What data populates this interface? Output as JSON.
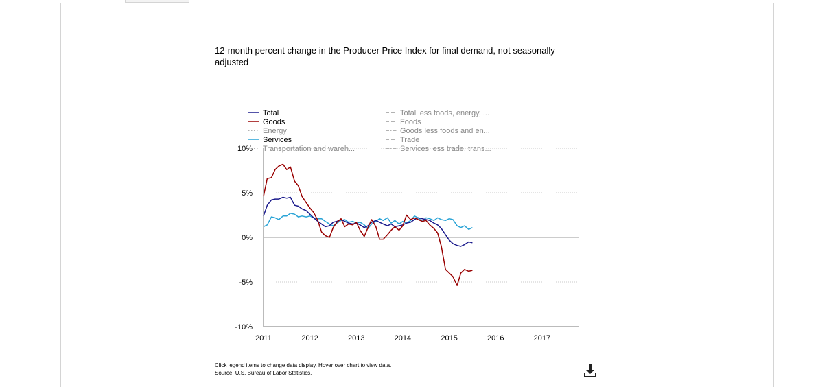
{
  "page": {
    "notes_line1": "Click legend items to change data display. Hover over chart to view data.",
    "notes_line2": "Source: U.S. Bureau of Labor Statistics.",
    "download_icon": "download-icon"
  },
  "chart_data": {
    "type": "line",
    "title": "12-month percent change in the Producer Price Index for final demand, not seasonally adjusted",
    "xlabel": "",
    "ylabel": "",
    "x_ticks": [
      "2011",
      "2012",
      "2013",
      "2014",
      "2015",
      "2016",
      "2017"
    ],
    "xlim": [
      2011,
      2017.8
    ],
    "y_ticks": [
      "10%",
      "5%",
      "0%",
      "-5%",
      "-10%"
    ],
    "ylim": [
      -10,
      10
    ],
    "grid": true,
    "legend_placement": "top",
    "series": [
      {
        "name": "Total",
        "color": "#1a1a8c",
        "dash": "solid",
        "active": true,
        "legend_column": 0,
        "x": [
          2011.0,
          2011.08,
          2011.17,
          2011.25,
          2011.33,
          2011.42,
          2011.5,
          2011.58,
          2011.67,
          2011.75,
          2011.83,
          2011.92,
          2012.0,
          2012.08,
          2012.17,
          2012.25,
          2012.33,
          2012.42,
          2012.5,
          2012.58,
          2012.67,
          2012.75,
          2012.83,
          2012.92,
          2013.0,
          2013.08,
          2013.17,
          2013.25,
          2013.33,
          2013.42,
          2013.5,
          2013.58,
          2013.67,
          2013.75,
          2013.83,
          2013.92,
          2014.0,
          2014.08,
          2014.17,
          2014.25,
          2014.33,
          2014.42,
          2014.5,
          2014.58,
          2014.67,
          2014.75,
          2014.83,
          2014.92,
          2015.0,
          2015.08,
          2015.17,
          2015.25,
          2015.33,
          2015.42,
          2015.5
        ],
        "y": [
          2.4,
          3.6,
          4.2,
          4.3,
          4.3,
          4.5,
          4.4,
          4.5,
          3.6,
          3.5,
          3.2,
          3.0,
          2.6,
          2.2,
          1.8,
          1.5,
          1.2,
          1.3,
          1.7,
          1.8,
          2.0,
          1.8,
          1.6,
          1.5,
          1.6,
          1.4,
          1.1,
          1.3,
          1.7,
          1.9,
          1.7,
          1.5,
          1.3,
          1.5,
          1.2,
          1.3,
          1.4,
          1.6,
          1.7,
          2.0,
          2.2,
          2.1,
          2.0,
          1.9,
          1.6,
          1.4,
          1.0,
          0.3,
          -0.3,
          -0.7,
          -0.9,
          -1.0,
          -0.8,
          -0.5,
          -0.6
        ]
      },
      {
        "name": "Goods",
        "color": "#990000",
        "dash": "solid",
        "active": true,
        "legend_column": 0,
        "x": [
          2011.0,
          2011.08,
          2011.17,
          2011.25,
          2011.33,
          2011.42,
          2011.5,
          2011.58,
          2011.67,
          2011.75,
          2011.83,
          2011.92,
          2012.0,
          2012.08,
          2012.17,
          2012.25,
          2012.33,
          2012.42,
          2012.5,
          2012.58,
          2012.67,
          2012.75,
          2012.83,
          2012.92,
          2013.0,
          2013.08,
          2013.17,
          2013.25,
          2013.33,
          2013.42,
          2013.5,
          2013.58,
          2013.67,
          2013.75,
          2013.83,
          2013.92,
          2014.0,
          2014.08,
          2014.17,
          2014.25,
          2014.33,
          2014.42,
          2014.5,
          2014.58,
          2014.67,
          2014.75,
          2014.83,
          2014.92,
          2015.0,
          2015.08,
          2015.17,
          2015.25,
          2015.33,
          2015.42,
          2015.5
        ],
        "y": [
          4.6,
          6.6,
          6.7,
          7.6,
          8.0,
          8.2,
          7.6,
          7.9,
          6.3,
          5.8,
          4.6,
          3.9,
          3.3,
          2.8,
          1.9,
          0.6,
          0.2,
          0.0,
          1.1,
          1.7,
          2.1,
          1.2,
          1.5,
          1.4,
          1.7,
          0.8,
          0.1,
          1.1,
          2.0,
          1.2,
          -0.2,
          -0.2,
          0.3,
          0.8,
          1.2,
          0.8,
          1.3,
          2.5,
          2.0,
          2.2,
          2.0,
          1.8,
          1.9,
          1.4,
          1.0,
          0.5,
          -1.0,
          -3.6,
          -4.0,
          -4.4,
          -5.4,
          -4.0,
          -3.6,
          -3.8,
          -3.7
        ]
      },
      {
        "name": "Energy",
        "color": "#8c8c8c",
        "dash": "dotted",
        "active": false,
        "legend_column": 0,
        "x": [],
        "y": []
      },
      {
        "name": "Services",
        "color": "#29a3d6",
        "dash": "solid",
        "active": true,
        "legend_column": 0,
        "x": [
          2011.0,
          2011.08,
          2011.17,
          2011.25,
          2011.33,
          2011.42,
          2011.5,
          2011.58,
          2011.67,
          2011.75,
          2011.83,
          2011.92,
          2012.0,
          2012.08,
          2012.17,
          2012.25,
          2012.33,
          2012.42,
          2012.5,
          2012.58,
          2012.67,
          2012.75,
          2012.83,
          2012.92,
          2013.0,
          2013.08,
          2013.17,
          2013.25,
          2013.33,
          2013.42,
          2013.5,
          2013.58,
          2013.67,
          2013.75,
          2013.83,
          2013.92,
          2014.0,
          2014.08,
          2014.17,
          2014.25,
          2014.33,
          2014.42,
          2014.5,
          2014.58,
          2014.67,
          2014.75,
          2014.83,
          2014.92,
          2015.0,
          2015.08,
          2015.17,
          2015.25,
          2015.33,
          2015.42,
          2015.5
        ],
        "y": [
          1.2,
          1.4,
          2.3,
          2.2,
          2.0,
          2.4,
          2.4,
          2.7,
          2.6,
          2.3,
          2.4,
          2.3,
          2.4,
          2.2,
          2.1,
          2.1,
          1.8,
          1.5,
          1.3,
          1.6,
          1.9,
          2.0,
          1.7,
          1.8,
          1.6,
          1.7,
          1.4,
          1.0,
          1.5,
          1.8,
          2.1,
          1.9,
          2.2,
          1.6,
          1.9,
          1.5,
          1.8,
          1.6,
          1.9,
          2.4,
          2.2,
          1.8,
          2.2,
          2.1,
          1.9,
          2.2,
          2.0,
          1.9,
          2.1,
          2.0,
          1.3,
          1.1,
          1.3,
          0.9,
          1.1
        ]
      },
      {
        "name": "Transportation and wareh...",
        "color": "#8c8c8c",
        "dash": "dotted",
        "active": false,
        "legend_column": 0,
        "x": [],
        "y": []
      },
      {
        "name": "Total less foods, energy, ...",
        "color": "#8c8c8c",
        "dash": "dashed",
        "active": false,
        "legend_column": 1,
        "x": [],
        "y": []
      },
      {
        "name": "Foods",
        "color": "#8c8c8c",
        "dash": "dashed",
        "active": false,
        "legend_column": 1,
        "x": [],
        "y": []
      },
      {
        "name": "Goods less foods and en...",
        "color": "#8c8c8c",
        "dash": "dashdot",
        "active": false,
        "legend_column": 1,
        "x": [],
        "y": []
      },
      {
        "name": "Trade",
        "color": "#8c8c8c",
        "dash": "dashed",
        "active": false,
        "legend_column": 1,
        "x": [],
        "y": []
      },
      {
        "name": "Services less trade, trans...",
        "color": "#8c8c8c",
        "dash": "dashdot",
        "active": false,
        "legend_column": 1,
        "x": [],
        "y": []
      }
    ]
  }
}
